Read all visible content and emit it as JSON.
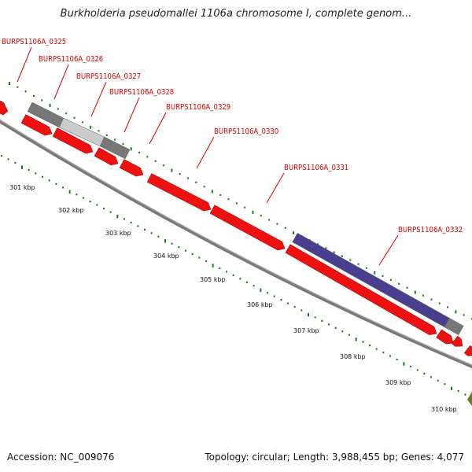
{
  "title": "Burkholderia pseudomallei 1106a chromosome I, complete genom...",
  "footer": {
    "accession": "Accession: NC_009076",
    "summary": "Topology: circular; Length: 3,988,455 bp; Genes: 4,077"
  },
  "colors": {
    "gene": "#ee1111",
    "gene_dark": "#aa0000",
    "pseudo_gray": "#777777",
    "pseudo_light": "#cccccc",
    "highlight": "#4a3f8f",
    "track_line": "#888888",
    "tick_green": "#1f7a1f",
    "label_red": "#e00000"
  },
  "gene_labels": [
    "BURPS1106A_0325",
    "BURPS1106A_0326",
    "BURPS1106A_0327",
    "BURPS1106A_0328",
    "BURPS1106A_0329",
    "BURPS1106A_0330",
    "BURPS1106A_0331",
    "BURPS1106A_0332"
  ],
  "kbp_labels": [
    "301 kbp",
    "302 kbp",
    "303 kbp",
    "304 kbp",
    "305 kbp",
    "306 kbp",
    "307 kbp",
    "308 kbp",
    "309 kbp",
    "310 kbp"
  ]
}
